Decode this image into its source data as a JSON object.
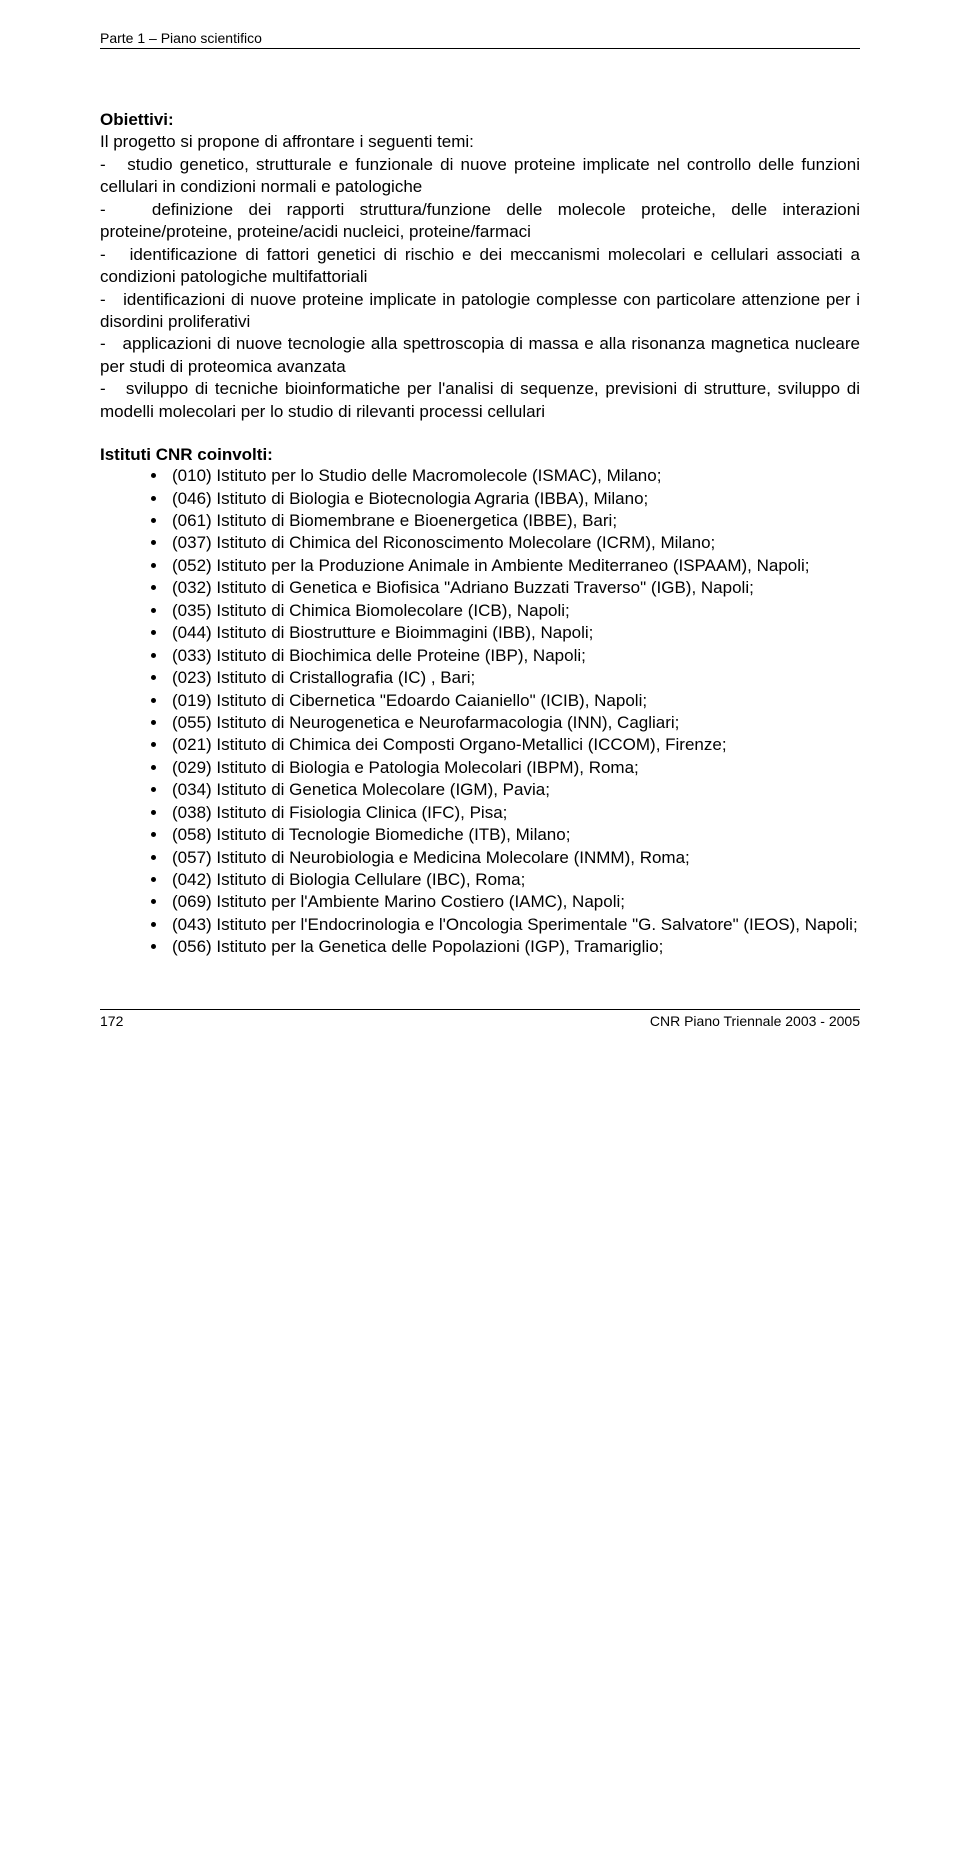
{
  "header": {
    "text": "Parte 1 – Piano scientifico"
  },
  "obiettivi": {
    "title": "Obiettivi:",
    "intro": "Il progetto si propone di affrontare i seguenti temi:",
    "items": [
      "studio genetico, strutturale e funzionale di nuove proteine implicate nel controllo delle funzioni cellulari in condizioni normali e patologiche",
      "definizione dei rapporti struttura/funzione delle molecole proteiche, delle interazioni proteine/proteine, proteine/acidi nucleici, proteine/farmaci",
      "identificazione di fattori genetici di rischio e dei meccanismi molecolari e cellulari associati a  condizioni patologiche multifattoriali",
      "identificazioni di nuove proteine implicate in patologie complesse con particolare attenzione per i disordini proliferativi",
      "applicazioni di nuove tecnologie alla spettroscopia di massa e alla risonanza magnetica nucleare per studi di proteomica avanzata",
      "sviluppo di tecniche bioinformatiche per l'analisi di sequenze, previsioni di strutture, sviluppo di modelli molecolari per lo studio di rilevanti processi cellulari"
    ]
  },
  "istituti": {
    "title": "Istituti CNR coinvolti:",
    "items": [
      "(010) Istituto per lo Studio delle Macromolecole (ISMAC), Milano;",
      "(046) Istituto di Biologia e Biotecnologia Agraria (IBBA), Milano;",
      "(061) Istituto di Biomembrane e Bioenergetica (IBBE), Bari;",
      "(037) Istituto di Chimica del Riconoscimento Molecolare (ICRM), Milano;",
      "(052) Istituto per la Produzione Animale in Ambiente Mediterraneo (ISPAAM), Napoli;",
      "(032) Istituto di Genetica e Biofisica \"Adriano Buzzati Traverso\" (IGB), Napoli;",
      "(035) Istituto di Chimica Biomolecolare (ICB), Napoli;",
      "(044) Istituto di Biostrutture e Bioimmagini (IBB), Napoli;",
      "(033) Istituto di Biochimica delle Proteine (IBP), Napoli;",
      "(023) Istituto di Cristallografia (IC) , Bari;",
      "(019) Istituto di Cibernetica \"Edoardo Caianiello\" (ICIB), Napoli;",
      "(055) Istituto di Neurogenetica e Neurofarmacologia (INN), Cagliari;",
      "(021) Istituto di Chimica dei Composti Organo-Metallici  (ICCOM), Firenze;",
      "(029) Istituto di Biologia e Patologia Molecolari (IBPM), Roma;",
      "(034) Istituto di Genetica Molecolare (IGM), Pavia;",
      "(038) Istituto di Fisiologia Clinica (IFC), Pisa;",
      "(058) Istituto di Tecnologie Biomediche (ITB), Milano;",
      "(057) Istituto di Neurobiologia e Medicina Molecolare (INMM), Roma;",
      "(042) Istituto di Biologia Cellulare  (IBC), Roma;",
      "(069) Istituto per l'Ambiente Marino Costiero (IAMC), Napoli;",
      "(043) Istituto per l'Endocrinologia e l'Oncologia Sperimentale \"G. Salvatore\" (IEOS), Napoli;",
      "(056) Istituto per la Genetica delle Popolazioni (IGP), Tramariglio;"
    ]
  },
  "footer": {
    "page_num": "172",
    "doc_title": "CNR Piano Triennale 2003 - 2005"
  }
}
